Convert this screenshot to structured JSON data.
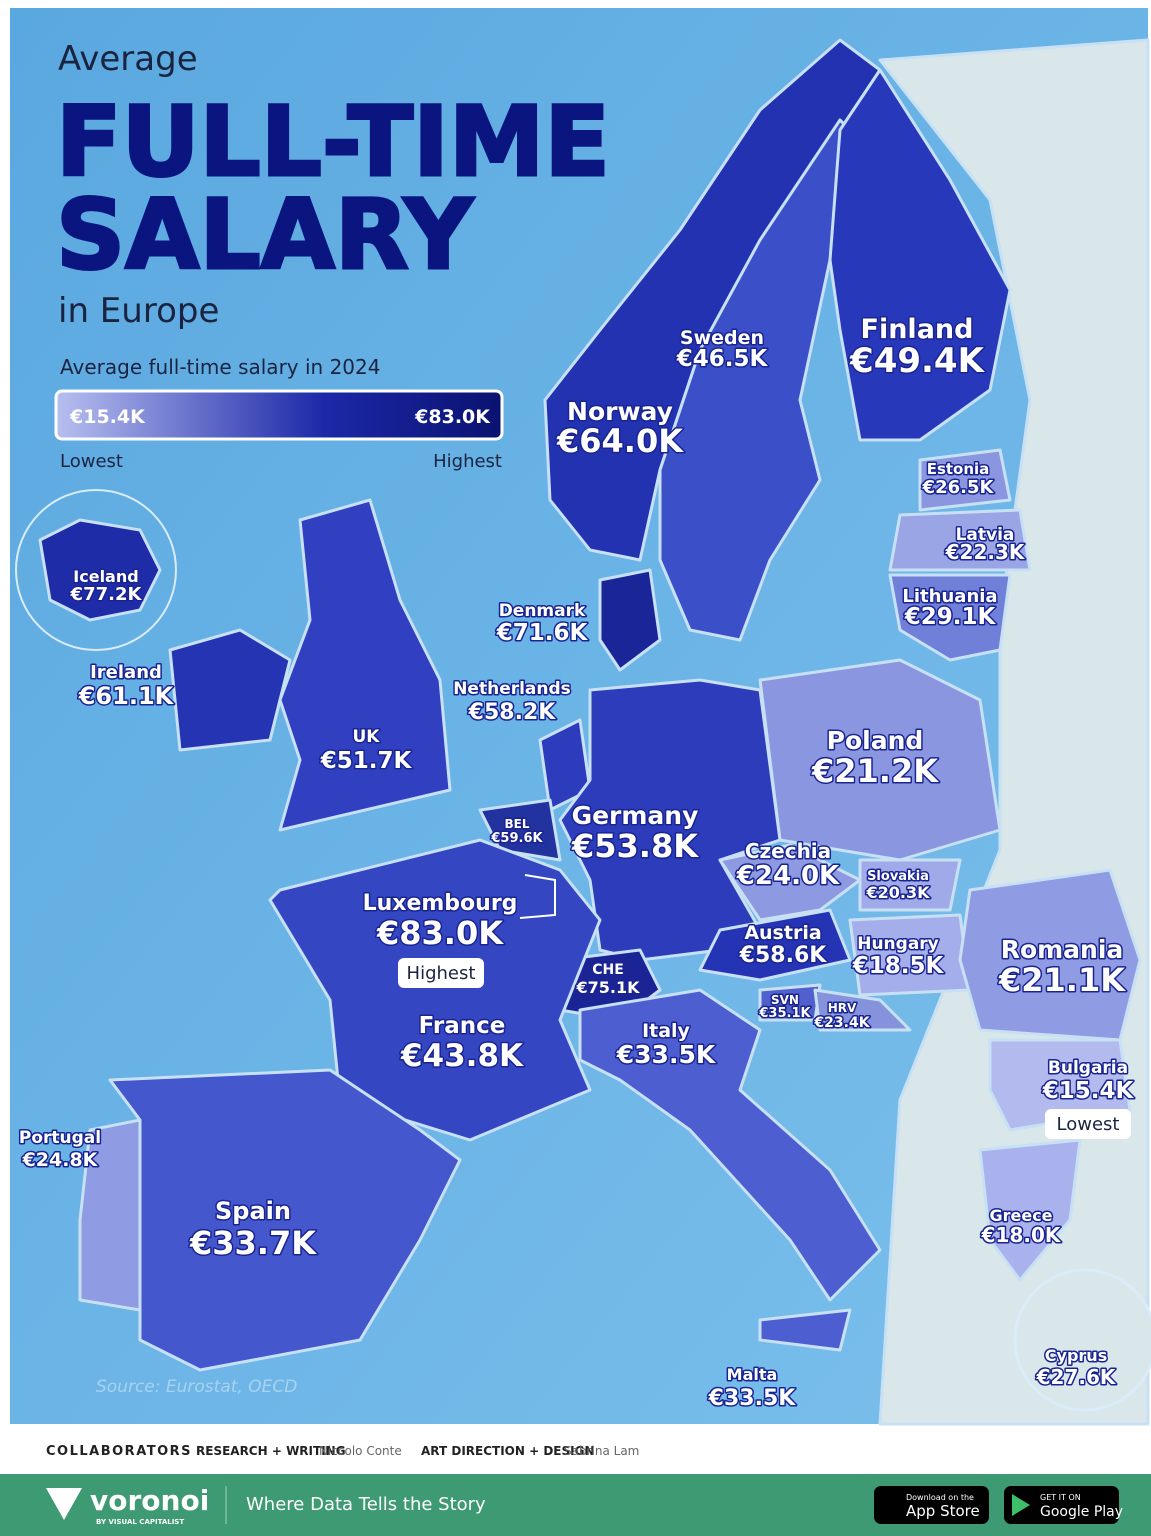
{
  "header": {
    "kicker": "Average",
    "title_line1": "FULL-TIME",
    "title_line2": "SALARY",
    "subtitle": "in Europe"
  },
  "legend": {
    "title": "Average full-time salary in 2024",
    "min": "€15.4K",
    "max": "€83.0K",
    "low": "Lowest",
    "high": "Highest"
  },
  "countries": [
    {
      "name": "Sweden",
      "value": "€46.5K"
    },
    {
      "name": "Finland",
      "value": "€49.4K"
    },
    {
      "name": "Norway",
      "value": "€64.0K"
    },
    {
      "name": "Estonia",
      "value": "€26.5K"
    },
    {
      "name": "Latvia",
      "value": "€22.3K"
    },
    {
      "name": "Lithuania",
      "value": "€29.1K"
    },
    {
      "name": "Iceland",
      "value": "€77.2K"
    },
    {
      "name": "Denmark",
      "value": "€71.6K"
    },
    {
      "name": "Ireland",
      "value": "€61.1K"
    },
    {
      "name": "Netherlands",
      "value": "€58.2K"
    },
    {
      "name": "UK",
      "value": "€51.7K"
    },
    {
      "name": "Poland",
      "value": "€21.2K"
    },
    {
      "name": "Germany",
      "value": "€53.8K"
    },
    {
      "name": "BEL",
      "value": "€59.6K"
    },
    {
      "name": "Czechia",
      "value": "€24.0K"
    },
    {
      "name": "Slovakia",
      "value": "€20.3K"
    },
    {
      "name": "Luxembourg",
      "value": "€83.0K"
    },
    {
      "name": "Austria",
      "value": "€58.6K"
    },
    {
      "name": "Hungary",
      "value": "€18.5K"
    },
    {
      "name": "Romania",
      "value": "€21.1K"
    },
    {
      "name": "CHE",
      "value": "€75.1K"
    },
    {
      "name": "SVN",
      "value": "€35.1K"
    },
    {
      "name": "HRV",
      "value": "€23.4K"
    },
    {
      "name": "France",
      "value": "€43.8K"
    },
    {
      "name": "Italy",
      "value": "€33.5K"
    },
    {
      "name": "Bulgaria",
      "value": "€15.4K"
    },
    {
      "name": "Portugal",
      "value": "€24.8K"
    },
    {
      "name": "Greece",
      "value": "€18.0K"
    },
    {
      "name": "Spain",
      "value": "€33.7K"
    },
    {
      "name": "Cyprus",
      "value": "€27.6K"
    },
    {
      "name": "Malta",
      "value": "€33.5K"
    }
  ],
  "badges": {
    "highest": "Highest",
    "lowest": "Lowest"
  },
  "source": "Source: Eurostat, OECD",
  "credits": {
    "label": "COLLABORATORS",
    "role1": "RESEARCH + WRITING",
    "person1": "Niccolo Conte",
    "role2": "ART DIRECTION + DESIGN",
    "person2": "Sabrina Lam"
  },
  "footer": {
    "brand": "voronoi",
    "brand_sub": "BY VISUAL CAPITALIST",
    "tagline": "Where Data Tells the Story",
    "app_small": "Download on the",
    "app_big": "App Store",
    "play_small": "GET IT ON",
    "play_big": "Google Play"
  }
}
